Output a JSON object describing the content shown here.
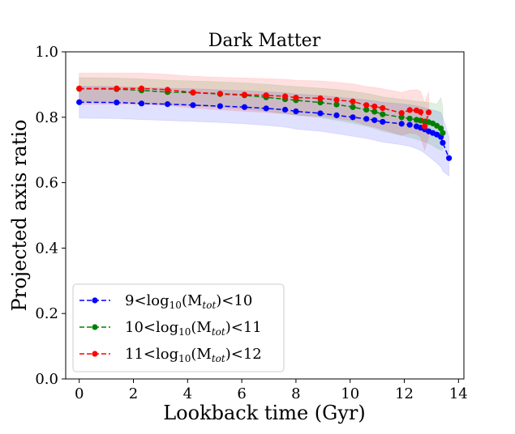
{
  "chart_data": {
    "type": "line",
    "title": "Dark Matter",
    "xlabel": "Lookback time (Gyr)",
    "ylabel": "Projected axis ratio",
    "xlim": [
      -0.5,
      14.2
    ],
    "ylim": [
      0.0,
      1.0
    ],
    "xticks": [
      0,
      2,
      4,
      6,
      8,
      10,
      12,
      14
    ],
    "yticks": [
      0.0,
      0.2,
      0.4,
      0.6,
      0.8,
      1.0
    ],
    "xtick_labels": [
      "0",
      "2",
      "4",
      "6",
      "8",
      "10",
      "12",
      "14"
    ],
    "ytick_labels": [
      "0.0",
      "0.2",
      "0.4",
      "0.6",
      "0.8",
      "1.0"
    ],
    "grid": false,
    "legend_position": "lower-left",
    "series": [
      {
        "legend": {
          "prefix": "9<log",
          "sub": "10",
          "mid": "(M",
          "subi": "tot",
          "suffix": ")<10"
        },
        "color": "#0000ff",
        "band_color": "#0000ff",
        "band_alpha": 0.12,
        "x": [
          0.0,
          1.38,
          2.3,
          3.26,
          4.2,
          5.2,
          6.1,
          6.9,
          7.6,
          8.0,
          8.9,
          9.5,
          10.1,
          10.6,
          10.9,
          11.2,
          11.9,
          12.2,
          12.45,
          12.6,
          12.75,
          12.9,
          13.05,
          13.2,
          13.35,
          13.42,
          13.65
        ],
        "y": [
          0.846,
          0.845,
          0.842,
          0.84,
          0.837,
          0.834,
          0.831,
          0.827,
          0.823,
          0.818,
          0.812,
          0.806,
          0.8,
          0.795,
          0.791,
          0.786,
          0.78,
          0.777,
          0.772,
          0.768,
          0.763,
          0.757,
          0.752,
          0.747,
          0.74,
          0.722,
          0.675
        ],
        "lower": [
          0.797,
          0.796,
          0.793,
          0.79,
          0.787,
          0.784,
          0.78,
          0.775,
          0.77,
          0.764,
          0.757,
          0.75,
          0.742,
          0.735,
          0.73,
          0.724,
          0.716,
          0.711,
          0.704,
          0.698,
          0.69,
          0.68,
          0.67,
          0.66,
          0.648,
          0.635,
          0.62
        ],
        "upper": [
          0.895,
          0.894,
          0.891,
          0.889,
          0.887,
          0.884,
          0.881,
          0.878,
          0.875,
          0.871,
          0.867,
          0.862,
          0.857,
          0.853,
          0.85,
          0.846,
          0.841,
          0.838,
          0.835,
          0.832,
          0.829,
          0.825,
          0.822,
          0.819,
          0.815,
          0.8,
          0.74
        ]
      },
      {
        "legend": {
          "prefix": "10<log",
          "sub": "10",
          "mid": "(M",
          "subi": "tot",
          "suffix": ")<11"
        },
        "color": "#008000",
        "band_color": "#008000",
        "band_alpha": 0.12,
        "x": [
          0.0,
          1.38,
          2.3,
          3.26,
          4.2,
          5.2,
          6.1,
          6.9,
          7.6,
          8.0,
          8.9,
          9.5,
          10.1,
          10.6,
          10.9,
          11.2,
          11.9,
          12.2,
          12.45,
          12.6,
          12.75,
          12.9,
          13.05,
          13.2,
          13.35,
          13.42
        ],
        "y": [
          0.887,
          0.886,
          0.882,
          0.877,
          0.875,
          0.871,
          0.867,
          0.861,
          0.855,
          0.852,
          0.845,
          0.839,
          0.831,
          0.823,
          0.817,
          0.809,
          0.8,
          0.796,
          0.792,
          0.79,
          0.787,
          0.785,
          0.781,
          0.774,
          0.766,
          0.752
        ],
        "lower": [
          0.849,
          0.848,
          0.844,
          0.838,
          0.835,
          0.83,
          0.825,
          0.818,
          0.811,
          0.807,
          0.799,
          0.791,
          0.782,
          0.773,
          0.766,
          0.757,
          0.745,
          0.739,
          0.733,
          0.729,
          0.725,
          0.72,
          0.714,
          0.705,
          0.7,
          0.7
        ],
        "upper": [
          0.921,
          0.92,
          0.917,
          0.913,
          0.911,
          0.908,
          0.905,
          0.901,
          0.896,
          0.894,
          0.889,
          0.885,
          0.879,
          0.873,
          0.868,
          0.862,
          0.855,
          0.852,
          0.849,
          0.848,
          0.846,
          0.845,
          0.843,
          0.84,
          0.86,
          0.83
        ]
      },
      {
        "legend": {
          "prefix": "11<log",
          "sub": "10",
          "mid": "(M",
          "subi": "tot",
          "suffix": ")<12"
        },
        "color": "#ff0000",
        "band_color": "#ff0000",
        "band_alpha": 0.12,
        "x": [
          0.0,
          1.38,
          2.3,
          3.26,
          4.2,
          5.2,
          6.1,
          6.9,
          7.6,
          8.0,
          8.9,
          9.5,
          10.1,
          10.6,
          10.9,
          11.2,
          11.9,
          12.2,
          12.45,
          12.6,
          12.75,
          12.9
        ],
        "y": [
          0.888,
          0.888,
          0.888,
          0.884,
          0.876,
          0.872,
          0.869,
          0.867,
          0.864,
          0.86,
          0.858,
          0.853,
          0.848,
          0.837,
          0.833,
          0.828,
          0.813,
          0.822,
          0.821,
          0.816,
          0.772,
          0.815
        ],
        "lower": [
          0.84,
          0.84,
          0.84,
          0.836,
          0.828,
          0.823,
          0.818,
          0.815,
          0.811,
          0.806,
          0.803,
          0.796,
          0.789,
          0.776,
          0.77,
          0.763,
          0.745,
          0.752,
          0.748,
          0.74,
          0.7,
          0.74
        ],
        "upper": [
          0.935,
          0.935,
          0.935,
          0.931,
          0.925,
          0.922,
          0.92,
          0.918,
          0.916,
          0.913,
          0.911,
          0.907,
          0.902,
          0.894,
          0.891,
          0.887,
          0.876,
          0.883,
          0.884,
          0.88,
          0.845,
          0.878
        ]
      }
    ]
  }
}
